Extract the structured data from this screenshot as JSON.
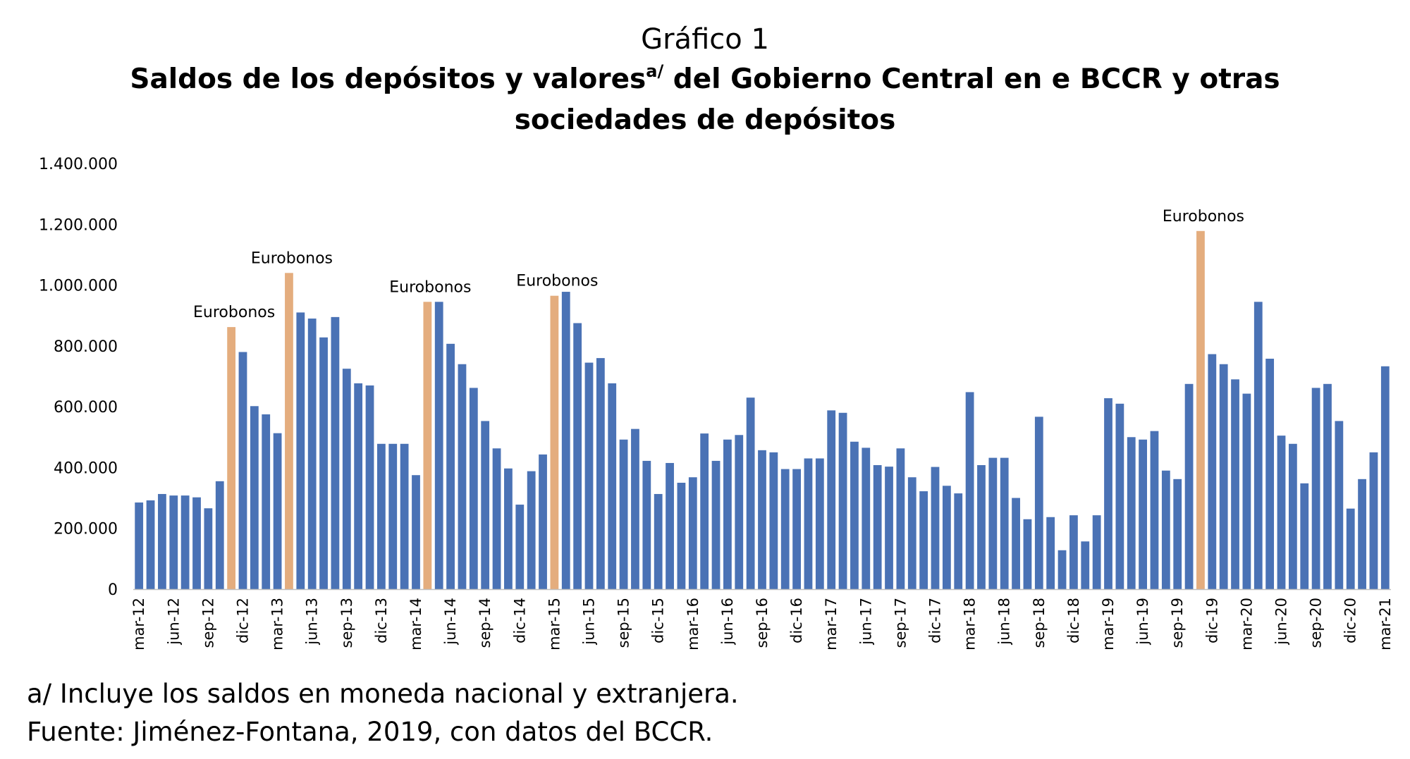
{
  "header": {
    "supertitle": "Gráfico 1",
    "title_part1": "Saldos de los depósitos y valores",
    "title_superscript": "a/",
    "title_part2": " del Gobierno Central en e BCCR y otras sociedades de depósitos"
  },
  "notes": {
    "footnote": "a/ Incluye los saldos en moneda nacional y extranjera.",
    "source": "Fuente: Jiménez-Fontana, 2019, con datos del BCCR."
  },
  "chart_data": {
    "type": "bar",
    "title": "Saldos de los depósitos y valores del Gobierno Central en e BCCR y otras sociedades de depósitos",
    "xlabel": "",
    "ylabel": "",
    "ylim": [
      0,
      1400000
    ],
    "yticks": [
      0,
      200000,
      400000,
      600000,
      800000,
      1000000,
      1200000,
      1400000
    ],
    "ytick_labels": [
      "0",
      "200.000",
      "400.000",
      "600.000",
      "800.000",
      "1.000.000",
      "1.200.000",
      "1.400.000"
    ],
    "grid": false,
    "legend": "none",
    "colors": {
      "regular": "#4a72b5",
      "eurobonos": "#e4ad7e"
    },
    "x_tick_labels": [
      {
        "index": 0,
        "label": "mar-12"
      },
      {
        "index": 3,
        "label": "jun-12"
      },
      {
        "index": 6,
        "label": "sep-12"
      },
      {
        "index": 9,
        "label": "dic-12"
      },
      {
        "index": 12,
        "label": "mar-13"
      },
      {
        "index": 15,
        "label": "jun-13"
      },
      {
        "index": 18,
        "label": "sep-13"
      },
      {
        "index": 21,
        "label": "dic-13"
      },
      {
        "index": 24,
        "label": "mar-14"
      },
      {
        "index": 27,
        "label": "jun-14"
      },
      {
        "index": 30,
        "label": "sep-14"
      },
      {
        "index": 33,
        "label": "dic-14"
      },
      {
        "index": 36,
        "label": "mar-15"
      },
      {
        "index": 39,
        "label": "jun-15"
      },
      {
        "index": 42,
        "label": "sep-15"
      },
      {
        "index": 45,
        "label": "dic-15"
      },
      {
        "index": 48,
        "label": "mar-16"
      },
      {
        "index": 51,
        "label": "jun-16"
      },
      {
        "index": 54,
        "label": "sep-16"
      },
      {
        "index": 57,
        "label": "dic-16"
      },
      {
        "index": 60,
        "label": "mar-17"
      },
      {
        "index": 63,
        "label": "jun-17"
      },
      {
        "index": 66,
        "label": "sep-17"
      },
      {
        "index": 69,
        "label": "dic-17"
      },
      {
        "index": 72,
        "label": "mar-18"
      },
      {
        "index": 75,
        "label": "jun-18"
      },
      {
        "index": 78,
        "label": "sep-18"
      },
      {
        "index": 81,
        "label": "dic-18"
      },
      {
        "index": 84,
        "label": "mar-19"
      },
      {
        "index": 87,
        "label": "jun-19"
      },
      {
        "index": 90,
        "label": "sep-19"
      },
      {
        "index": 93,
        "label": "dic-19"
      },
      {
        "index": 96,
        "label": "mar-20"
      },
      {
        "index": 99,
        "label": "jun-20"
      },
      {
        "index": 102,
        "label": "sep-20"
      },
      {
        "index": 105,
        "label": "dic-20"
      },
      {
        "index": 108,
        "label": "mar-21"
      }
    ],
    "values": [
      285000,
      292000,
      313000,
      308000,
      308000,
      302000,
      266000,
      355000,
      862000,
      780000,
      602000,
      575000,
      513000,
      1040000,
      910000,
      890000,
      828000,
      895000,
      725000,
      677000,
      670000,
      478000,
      478000,
      478000,
      375000,
      945000,
      945000,
      807000,
      740000,
      662000,
      553000,
      463000,
      397000,
      278000,
      388000,
      443000,
      965000,
      978000,
      875000,
      745000,
      760000,
      677000,
      492000,
      527000,
      422000,
      313000,
      415000,
      350000,
      368000,
      512000,
      422000,
      492000,
      507000,
      630000,
      457000,
      450000,
      395000,
      395000,
      430000,
      430000,
      588000,
      580000,
      485000,
      465000,
      408000,
      403000,
      463000,
      368000,
      322000,
      402000,
      340000,
      315000,
      648000,
      408000,
      432000,
      432000,
      300000,
      230000,
      567000,
      237000,
      128000,
      243000,
      157000,
      243000,
      628000,
      610000,
      500000,
      492000,
      520000,
      390000,
      362000,
      675000,
      1178000,
      773000,
      740000,
      690000,
      643000,
      945000,
      758000,
      505000,
      478000,
      348000,
      662000,
      675000,
      553000,
      265000,
      362000,
      450000,
      733000
    ],
    "eurobonos_indices": [
      8,
      13,
      25,
      36,
      92
    ],
    "annotations": [
      {
        "index": 8,
        "text": "Eurobonos"
      },
      {
        "index": 13,
        "text": "Eurobonos"
      },
      {
        "index": 25,
        "text": "Eurobonos"
      },
      {
        "index": 36,
        "text": "Eurobonos"
      },
      {
        "index": 92,
        "text": "Eurobonos"
      }
    ]
  }
}
